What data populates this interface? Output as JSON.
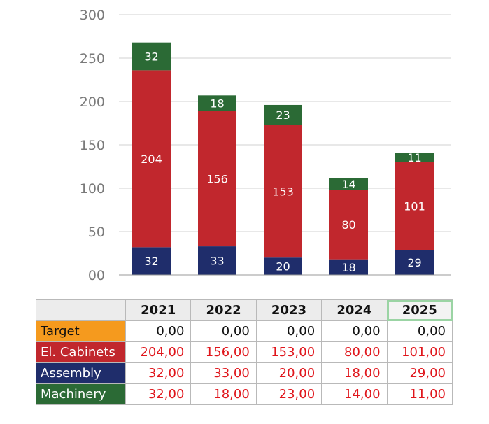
{
  "colors": {
    "target": "#f59a1e",
    "cabinets": "#c1272d",
    "assembly": "#1f2d6b",
    "machinery": "#2b6a35",
    "num_black": "#111111",
    "num_red": "#e0161c"
  },
  "chart_data": {
    "type": "bar",
    "stacked": true,
    "categories": [
      "2021",
      "2022",
      "2023",
      "2024",
      "2025"
    ],
    "series": [
      {
        "name": "Assembly",
        "values": [
          32,
          33,
          20,
          18,
          29
        ],
        "color": "#1f2d6b"
      },
      {
        "name": "El. Cabinets",
        "values": [
          204,
          156,
          153,
          80,
          101
        ],
        "color": "#c1272d"
      },
      {
        "name": "Machinery",
        "values": [
          32,
          18,
          23,
          14,
          11
        ],
        "color": "#2b6a35"
      }
    ],
    "ylim": [
      0,
      300
    ],
    "yticks": [
      "00",
      "50",
      "100",
      "150",
      "200",
      "250",
      "300"
    ],
    "grid": true,
    "title": "",
    "xlabel": "",
    "ylabel": ""
  },
  "table": {
    "header": [
      "2021",
      "2022",
      "2023",
      "2024",
      "2025"
    ],
    "highlighted_column": "2025",
    "rows": [
      {
        "label": "Target",
        "color": "#f59a1e",
        "value_color": "#111111",
        "values": [
          "0,00",
          "0,00",
          "0,00",
          "0,00",
          "0,00"
        ]
      },
      {
        "label": "El. Cabinets",
        "color": "#c1272d",
        "value_color": "#e0161c",
        "values": [
          "204,00",
          "156,00",
          "153,00",
          "80,00",
          "101,00"
        ]
      },
      {
        "label": "Assembly",
        "color": "#1f2d6b",
        "value_color": "#e0161c",
        "values": [
          "32,00",
          "33,00",
          "20,00",
          "18,00",
          "29,00"
        ]
      },
      {
        "label": "Machinery",
        "color": "#2b6a35",
        "value_color": "#e0161c",
        "values": [
          "32,00",
          "18,00",
          "23,00",
          "14,00",
          "11,00"
        ]
      }
    ]
  }
}
